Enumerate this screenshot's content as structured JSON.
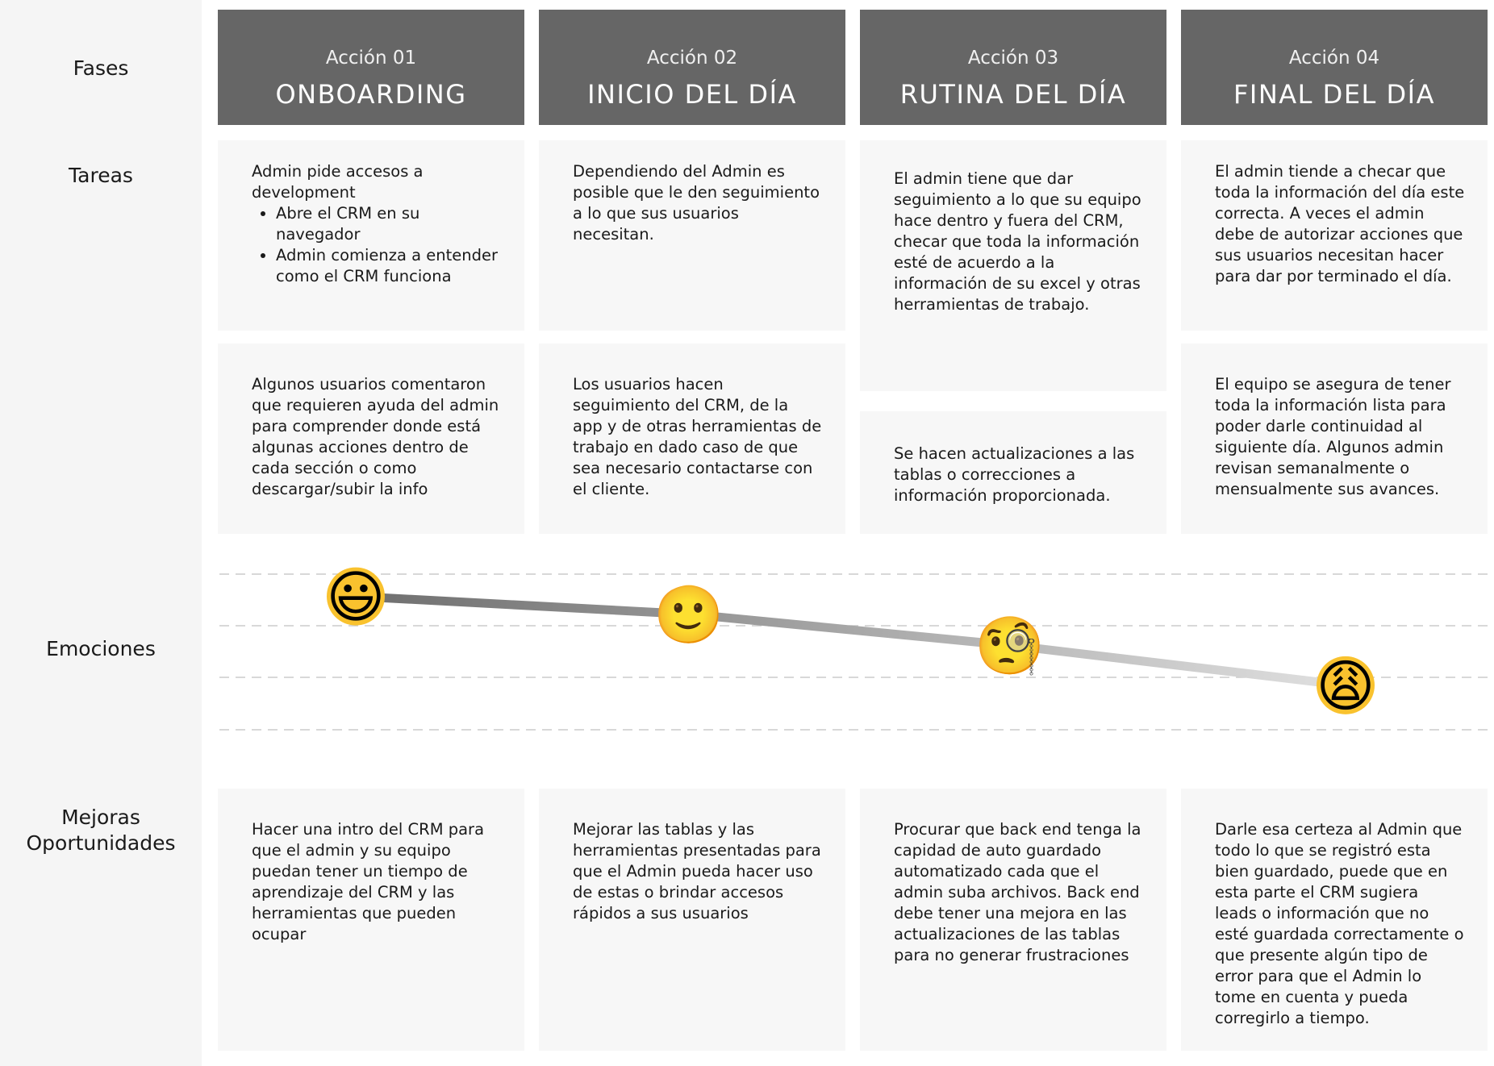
{
  "labels": {
    "fases": "Fases",
    "tareas": "Tareas",
    "emociones": "Emociones",
    "mejoras_line1": "Mejoras",
    "mejoras_line2": "Oportunidades"
  },
  "phases": [
    {
      "sub": "Acción 01",
      "title": "ONBOARDING"
    },
    {
      "sub": "Acción 02",
      "title": "INICIO DEL DÍA"
    },
    {
      "sub": "Acción 03",
      "title": "RUTINA DEL DÍA"
    },
    {
      "sub": "Acción 04",
      "title": "FINAL DEL DÍA"
    }
  ],
  "tasks": {
    "c1_top_intro": "Admin pide accesos a development",
    "c1_top_bullets": [
      "Abre el CRM en su navegador",
      "Admin comienza a entender como el CRM funciona"
    ],
    "c1_bottom": "Algunos usuarios comentaron que requieren ayuda del admin para comprender donde está algunas acciones dentro de cada sección o como descargar/subir la info",
    "c2_top": "Dependiendo del Admin es posible que le den seguimiento a lo que sus usuarios necesitan.",
    "c2_bottom": "Los usuarios hacen seguimiento del CRM, de la app y de otras herramientas de trabajo en dado caso de que sea necesario contactarse con el cliente.",
    "c3_top": "El admin tiene que dar seguimiento a lo que su equipo hace dentro y fuera del CRM, checar que toda la información esté de acuerdo a la información de su excel y otras herramientas de trabajo.",
    "c3_bottom": "Se hacen actualizaciones a las tablas o correcciones a información proporcionada.",
    "c4_top": "El admin tiende a checar que toda la información del día este correcta. A veces el admin debe de autorizar acciones que sus usuarios necesitan hacer para dar por terminado el día.",
    "c4_bottom": "El equipo se asegura de tener toda la información lista para poder darle continuidad al siguiente día. Algunos admin revisan semanalmente o mensualmente sus avances."
  },
  "chart_data": {
    "type": "line",
    "categories": [
      "Acción 01",
      "Acción 02",
      "Acción 03",
      "Acción 04"
    ],
    "values": [
      4,
      3.6,
      2.9,
      2
    ],
    "ylim": [
      1,
      4.5
    ],
    "grid": true,
    "emojis": [
      "😃",
      "🙂",
      "🧐",
      "😩"
    ]
  },
  "mejoras": [
    "Hacer una intro del CRM para que el admin y su equipo puedan tener un tiempo de aprendizaje del CRM y las herramientas que pueden ocupar",
    "Mejorar las tablas y las herramientas presentadas para que el Admin pueda hacer uso de estas o brindar accesos rápidos a sus usuarios",
    "Procurar que back end tenga la capidad de auto guardado automatizado cada que el admin suba archivos. Back end debe tener una mejora en las actualizaciones de las tablas para no generar frustraciones",
    "Darle esa certeza al Admin que todo lo que se registró esta bien guardado, puede que en esta parte el CRM sugiera leads o información que no esté guardada correctamente o que presente algún tipo de error para que el Admin lo tome en cuenta y pueda corregirlo a tiempo."
  ]
}
